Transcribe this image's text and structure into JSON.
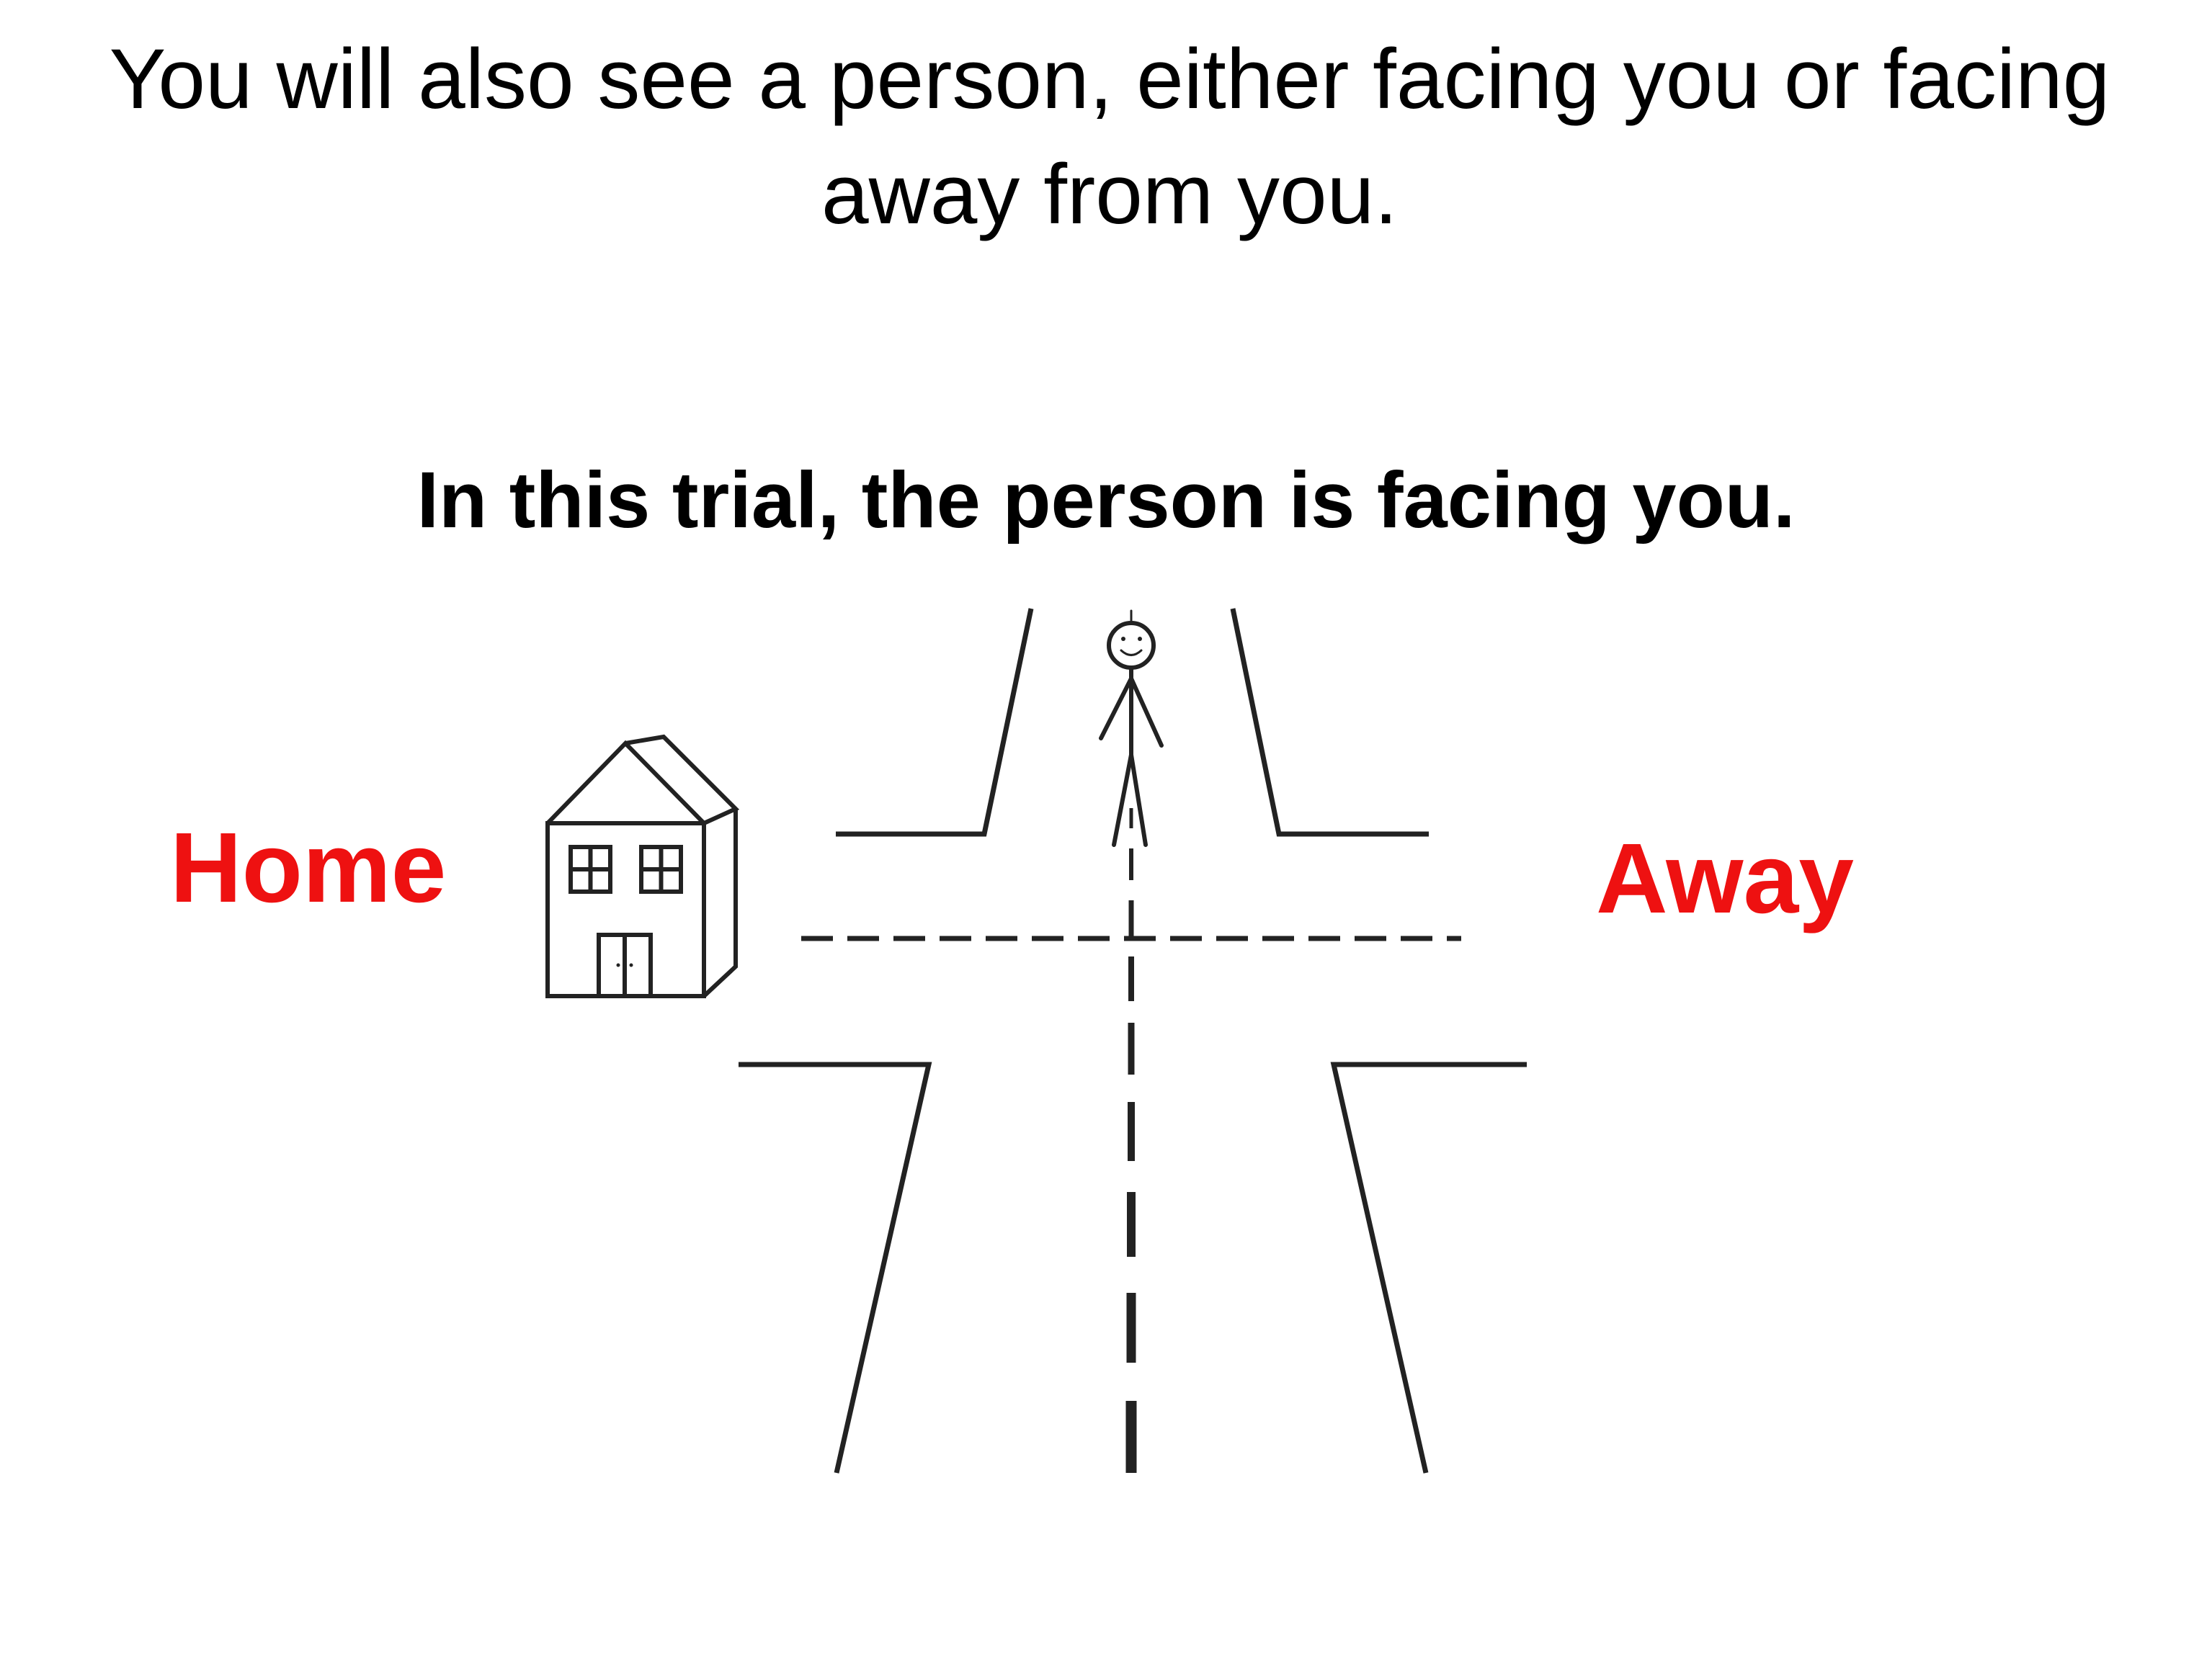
{
  "instruction": "You will also see a person, either facing you or facing away from you.",
  "trial_statement": "In this trial, the person is facing you.",
  "labels": {
    "home": "Home",
    "away": "Away"
  },
  "colors": {
    "label_red": "#ee1111",
    "line": "#222222",
    "text": "#000000"
  },
  "icons": [
    "house-icon",
    "person-facing-icon"
  ]
}
